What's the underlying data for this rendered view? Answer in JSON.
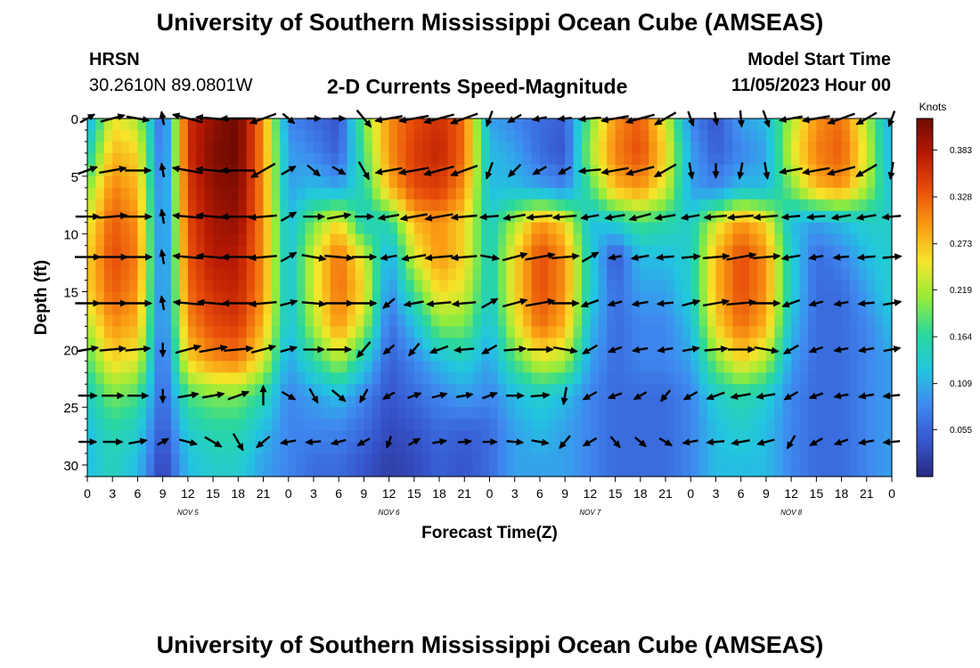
{
  "page": {
    "title": "University of Southern Mississippi Ocean Cube (AMSEAS)",
    "station": "HRSN",
    "coords": "30.2610N  89.0801W",
    "plot_title": "2-D Currents Speed-Magnitude",
    "model_start_label": "Model Start Time",
    "model_start_value": "11/05/2023 Hour 00",
    "footer_title": "University of Southern Mississippi Ocean Cube (AMSEAS)"
  },
  "chart_data": {
    "type": "heatmap",
    "title": "2-D Currents Speed-Magnitude",
    "xlabel": "Forecast Time(Z)",
    "ylabel": "Depth (ft)",
    "x_unit": "hours since 11/05/2023 00Z",
    "xlim": [
      0,
      96
    ],
    "x_tick_labels": [
      "0",
      "3",
      "6",
      "9",
      "12",
      "15",
      "18",
      "21",
      "0",
      "3",
      "6",
      "9",
      "12",
      "15",
      "18",
      "21",
      "0",
      "3",
      "6",
      "9",
      "12",
      "15",
      "18",
      "21",
      "0",
      "3",
      "6",
      "9",
      "12",
      "15",
      "18",
      "21",
      "0"
    ],
    "x_tick_hours": [
      0,
      3,
      6,
      9,
      12,
      15,
      18,
      21,
      24,
      27,
      30,
      33,
      36,
      39,
      42,
      45,
      48,
      51,
      54,
      57,
      60,
      63,
      66,
      69,
      72,
      75,
      78,
      81,
      84,
      87,
      90,
      93,
      96
    ],
    "day_labels": [
      {
        "hour": 12,
        "label": "NOV 5"
      },
      {
        "hour": 36,
        "label": "NOV 6"
      },
      {
        "hour": 60,
        "label": "NOV 7"
      },
      {
        "hour": 84,
        "label": "NOV 8"
      }
    ],
    "ylim": [
      0,
      31
    ],
    "y_inverted": true,
    "y_ticks": [
      0,
      5,
      10,
      15,
      20,
      25,
      30
    ],
    "colorbar": {
      "label": "Knots",
      "min": 0.0,
      "max": 0.42,
      "ticks": [
        0.055,
        0.109,
        0.164,
        0.219,
        0.273,
        0.328,
        0.383
      ],
      "colormap": [
        "#282a82",
        "#3756cf",
        "#3f8af0",
        "#22c6e0",
        "#2bd89a",
        "#95ec3a",
        "#f6e52a",
        "#fa9c14",
        "#e84e0a",
        "#b91a03",
        "#6e0a01"
      ]
    },
    "vector_depths": [
      0,
      4.5,
      8.5,
      12,
      16,
      20,
      24,
      28
    ],
    "speed_by_depth_and_time": {
      "depths_ft": [
        0,
        3,
        6,
        9,
        12,
        15,
        18,
        21,
        24,
        27,
        30
      ],
      "hours": [
        0,
        3,
        6,
        9,
        12,
        15,
        18,
        21,
        24,
        27,
        30,
        33,
        36,
        39,
        42,
        45,
        48,
        51,
        54,
        57,
        60,
        63,
        66,
        69,
        72,
        75,
        78,
        81,
        84,
        87,
        90,
        93,
        96
      ],
      "values": [
        [
          0.1,
          0.25,
          0.22,
          0.05,
          0.36,
          0.4,
          0.42,
          0.3,
          0.08,
          0.06,
          0.04,
          0.2,
          0.3,
          0.34,
          0.36,
          0.32,
          0.1,
          0.08,
          0.06,
          0.05,
          0.2,
          0.3,
          0.33,
          0.24,
          0.08,
          0.04,
          0.1,
          0.12,
          0.22,
          0.3,
          0.32,
          0.22,
          0.1
        ],
        [
          0.14,
          0.28,
          0.26,
          0.05,
          0.36,
          0.41,
          0.42,
          0.3,
          0.1,
          0.08,
          0.05,
          0.18,
          0.3,
          0.35,
          0.37,
          0.32,
          0.12,
          0.1,
          0.06,
          0.04,
          0.22,
          0.31,
          0.34,
          0.26,
          0.1,
          0.05,
          0.08,
          0.1,
          0.24,
          0.31,
          0.33,
          0.24,
          0.1
        ],
        [
          0.2,
          0.31,
          0.28,
          0.06,
          0.35,
          0.4,
          0.41,
          0.3,
          0.1,
          0.12,
          0.1,
          0.16,
          0.28,
          0.34,
          0.35,
          0.3,
          0.12,
          0.12,
          0.1,
          0.08,
          0.18,
          0.28,
          0.3,
          0.24,
          0.1,
          0.08,
          0.12,
          0.12,
          0.2,
          0.28,
          0.3,
          0.22,
          0.12
        ],
        [
          0.24,
          0.33,
          0.3,
          0.06,
          0.34,
          0.39,
          0.4,
          0.3,
          0.12,
          0.2,
          0.26,
          0.14,
          0.16,
          0.28,
          0.3,
          0.26,
          0.14,
          0.22,
          0.3,
          0.26,
          0.12,
          0.14,
          0.18,
          0.16,
          0.14,
          0.24,
          0.3,
          0.26,
          0.12,
          0.1,
          0.12,
          0.14,
          0.14
        ],
        [
          0.26,
          0.34,
          0.31,
          0.06,
          0.33,
          0.38,
          0.38,
          0.3,
          0.12,
          0.24,
          0.32,
          0.24,
          0.1,
          0.24,
          0.3,
          0.26,
          0.14,
          0.26,
          0.34,
          0.3,
          0.14,
          0.04,
          0.12,
          0.12,
          0.14,
          0.28,
          0.34,
          0.3,
          0.14,
          0.06,
          0.08,
          0.12,
          0.14
        ],
        [
          0.26,
          0.33,
          0.3,
          0.06,
          0.32,
          0.36,
          0.37,
          0.3,
          0.12,
          0.24,
          0.32,
          0.26,
          0.08,
          0.18,
          0.26,
          0.24,
          0.14,
          0.26,
          0.34,
          0.3,
          0.14,
          0.06,
          0.1,
          0.1,
          0.14,
          0.28,
          0.34,
          0.3,
          0.14,
          0.06,
          0.06,
          0.1,
          0.14
        ],
        [
          0.22,
          0.3,
          0.28,
          0.06,
          0.3,
          0.34,
          0.35,
          0.28,
          0.12,
          0.22,
          0.3,
          0.22,
          0.06,
          0.12,
          0.2,
          0.2,
          0.12,
          0.24,
          0.32,
          0.28,
          0.12,
          0.06,
          0.08,
          0.08,
          0.12,
          0.26,
          0.32,
          0.28,
          0.12,
          0.06,
          0.06,
          0.08,
          0.12
        ],
        [
          0.18,
          0.26,
          0.24,
          0.05,
          0.26,
          0.3,
          0.31,
          0.24,
          0.1,
          0.16,
          0.22,
          0.14,
          0.05,
          0.08,
          0.12,
          0.14,
          0.1,
          0.18,
          0.24,
          0.22,
          0.1,
          0.06,
          0.08,
          0.08,
          0.1,
          0.2,
          0.26,
          0.22,
          0.1,
          0.06,
          0.06,
          0.08,
          0.1
        ],
        [
          0.14,
          0.2,
          0.18,
          0.05,
          0.18,
          0.2,
          0.2,
          0.16,
          0.08,
          0.1,
          0.12,
          0.08,
          0.04,
          0.06,
          0.08,
          0.1,
          0.08,
          0.12,
          0.14,
          0.12,
          0.08,
          0.06,
          0.06,
          0.06,
          0.08,
          0.14,
          0.16,
          0.14,
          0.08,
          0.06,
          0.06,
          0.08,
          0.1
        ],
        [
          0.12,
          0.16,
          0.14,
          0.04,
          0.14,
          0.16,
          0.16,
          0.12,
          0.08,
          0.08,
          0.08,
          0.06,
          0.03,
          0.04,
          0.06,
          0.05,
          0.06,
          0.1,
          0.12,
          0.1,
          0.08,
          0.06,
          0.06,
          0.06,
          0.08,
          0.12,
          0.14,
          0.12,
          0.08,
          0.06,
          0.06,
          0.08,
          0.1
        ],
        [
          0.12,
          0.15,
          0.12,
          0.02,
          0.12,
          0.14,
          0.14,
          0.1,
          0.08,
          0.06,
          0.06,
          0.04,
          0.02,
          0.03,
          0.05,
          0.04,
          0.06,
          0.1,
          0.1,
          0.1,
          0.08,
          0.06,
          0.06,
          0.06,
          0.08,
          0.12,
          0.12,
          0.12,
          0.08,
          0.06,
          0.06,
          0.08,
          0.1
        ]
      ]
    },
    "vector_direction_deg_by_depth_and_time": {
      "depths_ft": [
        0,
        4.5,
        8.5,
        12,
        16,
        20,
        24,
        28
      ],
      "hours": [
        0,
        3,
        6,
        9,
        12,
        15,
        18,
        21,
        24,
        27,
        30,
        33,
        36,
        39,
        42,
        45,
        48,
        51,
        54,
        57,
        60,
        63,
        66,
        69,
        72,
        75,
        78,
        81,
        84,
        87,
        90,
        93,
        96
      ],
      "values": [
        [
          30,
          15,
          -10,
          100,
          165,
          175,
          180,
          -160,
          -40,
          0,
          0,
          -50,
          -170,
          -170,
          -165,
          -160,
          -110,
          -150,
          -170,
          -175,
          -175,
          -170,
          -165,
          -150,
          -70,
          -80,
          -85,
          -70,
          -170,
          -170,
          -160,
          -150,
          -110
        ],
        [
          20,
          10,
          0,
          100,
          170,
          175,
          180,
          -150,
          30,
          -40,
          -30,
          -60,
          -170,
          -170,
          -165,
          -160,
          -110,
          -135,
          -150,
          -150,
          -175,
          -170,
          -165,
          -150,
          -80,
          -90,
          -100,
          -80,
          -170,
          -170,
          -165,
          -150,
          -100
        ],
        [
          0,
          5,
          0,
          100,
          175,
          175,
          180,
          -175,
          30,
          0,
          10,
          0,
          -170,
          -170,
          -170,
          -175,
          -175,
          -170,
          -175,
          -175,
          -170,
          -170,
          -165,
          -170,
          -170,
          -175,
          -175,
          -175,
          -175,
          -175,
          -170,
          -170,
          -175
        ],
        [
          0,
          0,
          0,
          100,
          175,
          175,
          180,
          -175,
          30,
          -10,
          -5,
          0,
          -170,
          -170,
          -175,
          -175,
          -10,
          15,
          10,
          5,
          30,
          -170,
          -170,
          -175,
          5,
          5,
          10,
          5,
          -170,
          -170,
          -175,
          -175,
          5
        ],
        [
          0,
          0,
          0,
          100,
          175,
          175,
          180,
          -175,
          15,
          -5,
          0,
          0,
          -140,
          -170,
          -175,
          -175,
          30,
          15,
          10,
          0,
          -160,
          -165,
          -170,
          -175,
          15,
          10,
          5,
          0,
          -160,
          -165,
          -170,
          -175,
          10
        ],
        [
          10,
          5,
          5,
          -90,
          15,
          10,
          5,
          15,
          15,
          0,
          0,
          -130,
          -140,
          -130,
          -160,
          -175,
          -150,
          5,
          0,
          -10,
          -150,
          -160,
          -170,
          -170,
          10,
          5,
          0,
          -10,
          -150,
          -160,
          -170,
          -170,
          10
        ],
        [
          0,
          0,
          0,
          -90,
          10,
          10,
          20,
          90,
          -30,
          -60,
          -40,
          -120,
          -150,
          20,
          15,
          10,
          20,
          0,
          5,
          -100,
          -150,
          -160,
          -150,
          -130,
          -150,
          -160,
          -170,
          -170,
          -150,
          -160,
          -170,
          -170,
          -175
        ],
        [
          0,
          0,
          10,
          30,
          -15,
          -30,
          -60,
          -140,
          -170,
          -175,
          -165,
          -150,
          -110,
          30,
          10,
          5,
          0,
          -5,
          -10,
          -130,
          -150,
          -50,
          -40,
          -30,
          -170,
          -175,
          -170,
          -165,
          -120,
          -150,
          -160,
          -170,
          -175
        ]
      ]
    },
    "vector_style": {
      "color": "#000000",
      "relative_length": "proportional to speed"
    }
  }
}
